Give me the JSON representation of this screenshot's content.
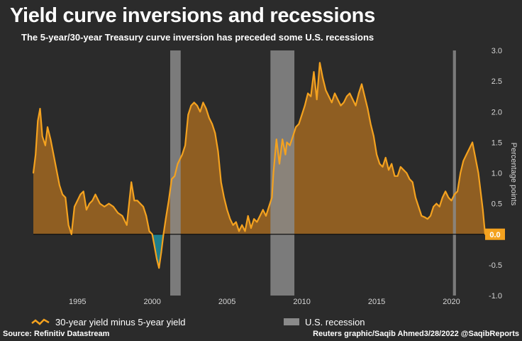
{
  "header": {
    "title": "Yield curve inversions and recessions",
    "subtitle": "The 5-year/30-year Treasury curve inversion has preceded some U.S. recessions"
  },
  "legend": {
    "series_label": "30-year yield minus 5-year yield",
    "recession_label": "U.S. recession"
  },
  "footer": {
    "source": "Source: Refinitiv Datastream",
    "credit": "Reuters graphic/Saqib Ahmed3/28/2022 @SaqibReports"
  },
  "colors": {
    "background": "#2b2b2b",
    "line": "#f4a21f",
    "positive_fill": "#8f5e22",
    "negative_fill": "#1f7f8c",
    "recession": "#8a8a8a",
    "text": "#ffffff",
    "axis_text": "#d6d6d6",
    "last_value_badge": "#f4a21f"
  },
  "chart_data": {
    "type": "area",
    "x_ticks": [
      "1995",
      "2000",
      "2005",
      "2010",
      "2015",
      "2020"
    ],
    "y_ticks": [
      "3.0",
      "2.5",
      "2.0",
      "1.5",
      "1.0",
      "0.5",
      "0.0",
      "-0.5",
      "-1.0"
    ],
    "xlim": [
      1992.05,
      2022.25
    ],
    "ylim": [
      -1.0,
      3.0
    ],
    "ylabel": "Percentage points",
    "grid": false,
    "y_axis_side": "right",
    "last_value_label": "0.0",
    "recessions": [
      [
        2001.2,
        2001.9
      ],
      [
        2007.9,
        2009.5
      ],
      [
        2020.1,
        2020.3
      ]
    ],
    "series": [
      {
        "name": "30-year yield minus 5-year yield",
        "x": [
          1992.05,
          1992.2,
          1992.35,
          1992.5,
          1992.65,
          1992.85,
          1993.0,
          1993.2,
          1993.4,
          1993.6,
          1993.8,
          1994.0,
          1994.2,
          1994.4,
          1994.6,
          1994.8,
          1995.0,
          1995.2,
          1995.4,
          1995.6,
          1995.8,
          1996.0,
          1996.2,
          1996.5,
          1996.8,
          1997.1,
          1997.4,
          1997.7,
          1998.0,
          1998.3,
          1998.6,
          1998.8,
          1999.0,
          1999.2,
          1999.4,
          1999.6,
          1999.8,
          2000.0,
          2000.15,
          2000.3,
          2000.45,
          2000.6,
          2000.75,
          2000.9,
          2001.1,
          2001.3,
          2001.5,
          2001.7,
          2001.9,
          2002.0,
          2002.2,
          2002.4,
          2002.6,
          2002.8,
          2003.0,
          2003.2,
          2003.4,
          2003.6,
          2003.8,
          2004.0,
          2004.2,
          2004.4,
          2004.6,
          2004.8,
          2005.0,
          2005.2,
          2005.4,
          2005.6,
          2005.8,
          2006.0,
          2006.2,
          2006.4,
          2006.6,
          2006.8,
          2007.0,
          2007.2,
          2007.4,
          2007.6,
          2007.8,
          2008.0,
          2008.1,
          2008.3,
          2008.5,
          2008.7,
          2008.9,
          2009.0,
          2009.2,
          2009.4,
          2009.6,
          2009.8,
          2010.0,
          2010.2,
          2010.4,
          2010.6,
          2010.8,
          2011.0,
          2011.2,
          2011.4,
          2011.6,
          2011.8,
          2012.0,
          2012.2,
          2012.4,
          2012.6,
          2012.8,
          2013.0,
          2013.2,
          2013.4,
          2013.6,
          2013.8,
          2014.0,
          2014.2,
          2014.4,
          2014.6,
          2014.8,
          2015.0,
          2015.2,
          2015.4,
          2015.6,
          2015.8,
          2016.0,
          2016.2,
          2016.4,
          2016.6,
          2016.8,
          2017.0,
          2017.2,
          2017.4,
          2017.6,
          2017.8,
          2018.0,
          2018.2,
          2018.4,
          2018.6,
          2018.8,
          2019.0,
          2019.2,
          2019.4,
          2019.6,
          2019.8,
          2020.0,
          2020.2,
          2020.4,
          2020.6,
          2020.8,
          2021.0,
          2021.2,
          2021.4,
          2021.6,
          2021.8,
          2022.0,
          2022.1,
          2022.25
        ],
        "y": [
          1.0,
          1.3,
          1.85,
          2.05,
          1.6,
          1.45,
          1.75,
          1.55,
          1.3,
          1.05,
          0.8,
          0.65,
          0.6,
          0.15,
          0.0,
          0.45,
          0.55,
          0.65,
          0.7,
          0.4,
          0.5,
          0.55,
          0.65,
          0.5,
          0.45,
          0.5,
          0.45,
          0.35,
          0.3,
          0.15,
          0.85,
          0.55,
          0.55,
          0.5,
          0.45,
          0.3,
          0.05,
          0.0,
          -0.2,
          -0.4,
          -0.55,
          -0.3,
          0.0,
          0.25,
          0.55,
          0.9,
          0.95,
          1.15,
          1.25,
          1.3,
          1.45,
          1.95,
          2.1,
          2.15,
          2.1,
          2.0,
          2.15,
          2.05,
          1.9,
          1.8,
          1.65,
          1.35,
          0.85,
          0.6,
          0.4,
          0.25,
          0.15,
          0.2,
          0.05,
          0.15,
          0.05,
          0.3,
          0.1,
          0.25,
          0.2,
          0.3,
          0.4,
          0.3,
          0.45,
          0.6,
          1.0,
          1.55,
          1.15,
          1.55,
          1.3,
          1.5,
          1.45,
          1.6,
          1.75,
          1.8,
          1.95,
          2.1,
          2.3,
          2.25,
          2.65,
          2.2,
          2.8,
          2.55,
          2.35,
          2.25,
          2.15,
          2.3,
          2.2,
          2.1,
          2.15,
          2.25,
          2.3,
          2.2,
          2.1,
          2.3,
          2.45,
          2.25,
          2.05,
          1.8,
          1.6,
          1.3,
          1.15,
          1.1,
          1.25,
          1.05,
          1.15,
          0.95,
          0.95,
          1.1,
          1.05,
          1.0,
          0.9,
          0.85,
          0.6,
          0.45,
          0.3,
          0.28,
          0.25,
          0.3,
          0.45,
          0.5,
          0.45,
          0.6,
          0.7,
          0.6,
          0.55,
          0.65,
          0.7,
          1.0,
          1.2,
          1.3,
          1.4,
          1.5,
          1.25,
          1.0,
          0.6,
          0.4,
          0.0
        ]
      }
    ]
  }
}
